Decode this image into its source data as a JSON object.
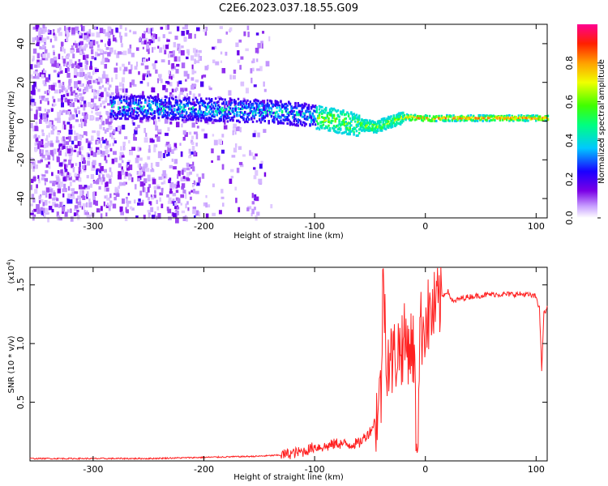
{
  "title": "C2E6.2023.037.18.55.G09",
  "chart_data": [
    {
      "type": "heatmap",
      "xlabel": "Height of straight line (km)",
      "ylabel": "Frequency (Hz)",
      "xlim": [
        -357,
        110
      ],
      "ylim": [
        -50,
        50
      ],
      "xticks": [
        -300,
        -200,
        -100,
        0,
        100
      ],
      "yticks": [
        -40,
        -20,
        0,
        20,
        40
      ],
      "colorbar": {
        "label": "Normalized spectral amplitude",
        "range": [
          0,
          1
        ],
        "ticks": [
          "0.0",
          "0.2",
          "0.4",
          "0.6",
          "0.8"
        ],
        "tick_values": [
          0.0,
          0.2,
          0.4,
          0.6,
          0.8
        ],
        "colormap": "rainbow (white-violet-blue-cyan-green-yellow-red-magenta)"
      },
      "ridge": {
        "description": "strong narrowband signal along a line near 0 Hz",
        "points": [
          {
            "x": -285,
            "y": 7
          },
          {
            "x": -250,
            "y": 7
          },
          {
            "x": -200,
            "y": 6
          },
          {
            "x": -150,
            "y": 5
          },
          {
            "x": -120,
            "y": 4
          },
          {
            "x": -100,
            "y": 2
          },
          {
            "x": -80,
            "y": 0
          },
          {
            "x": -60,
            "y": -2
          },
          {
            "x": -45,
            "y": -3
          },
          {
            "x": -30,
            "y": 0
          },
          {
            "x": -20,
            "y": 2
          },
          {
            "x": 0,
            "y": 1.5
          },
          {
            "x": 50,
            "y": 1.5
          },
          {
            "x": 100,
            "y": 1.5
          },
          {
            "x": 110,
            "y": 1.5
          }
        ]
      },
      "noise_region_x": [
        -357,
        -140
      ]
    },
    {
      "type": "line",
      "xlabel": "Height of straight line (km)",
      "ylabel": "SNR (10 * v/v)",
      "yscale_label": "(x10",
      "yscale_exp": "4",
      "yscale_close": ")",
      "xlim": [
        -357,
        110
      ],
      "ylim": [
        0,
        1.65
      ],
      "xticks": [
        -300,
        -200,
        -100,
        0,
        100
      ],
      "yticks": [
        "0.5",
        "1.0",
        "1.5"
      ],
      "ytick_values": [
        0.5,
        1.0,
        1.5
      ],
      "color": "#ff2020",
      "series": [
        {
          "x": [
            -357,
            -300,
            -250,
            -200,
            -150,
            -130,
            -110,
            -100,
            -90,
            -80,
            -70,
            -60,
            -50,
            -45,
            -40,
            -38,
            -35,
            -30,
            -25,
            -20,
            -15,
            -10,
            -8,
            -5,
            0,
            5,
            10,
            15,
            20,
            25,
            30,
            40,
            50,
            60,
            70,
            80,
            90,
            100,
            103,
            105,
            107,
            110
          ],
          "y": [
            0.02,
            0.02,
            0.02,
            0.03,
            0.04,
            0.05,
            0.08,
            0.12,
            0.12,
            0.15,
            0.14,
            0.15,
            0.25,
            0.35,
            0.6,
            1.6,
            0.9,
            0.85,
            0.95,
            1.0,
            1.0,
            0.95,
            0.05,
            1.1,
            1.2,
            1.25,
            1.3,
            1.4,
            1.45,
            1.35,
            1.38,
            1.4,
            1.41,
            1.42,
            1.42,
            1.42,
            1.42,
            1.4,
            1.3,
            0.78,
            1.25,
            1.3
          ]
        }
      ]
    }
  ]
}
